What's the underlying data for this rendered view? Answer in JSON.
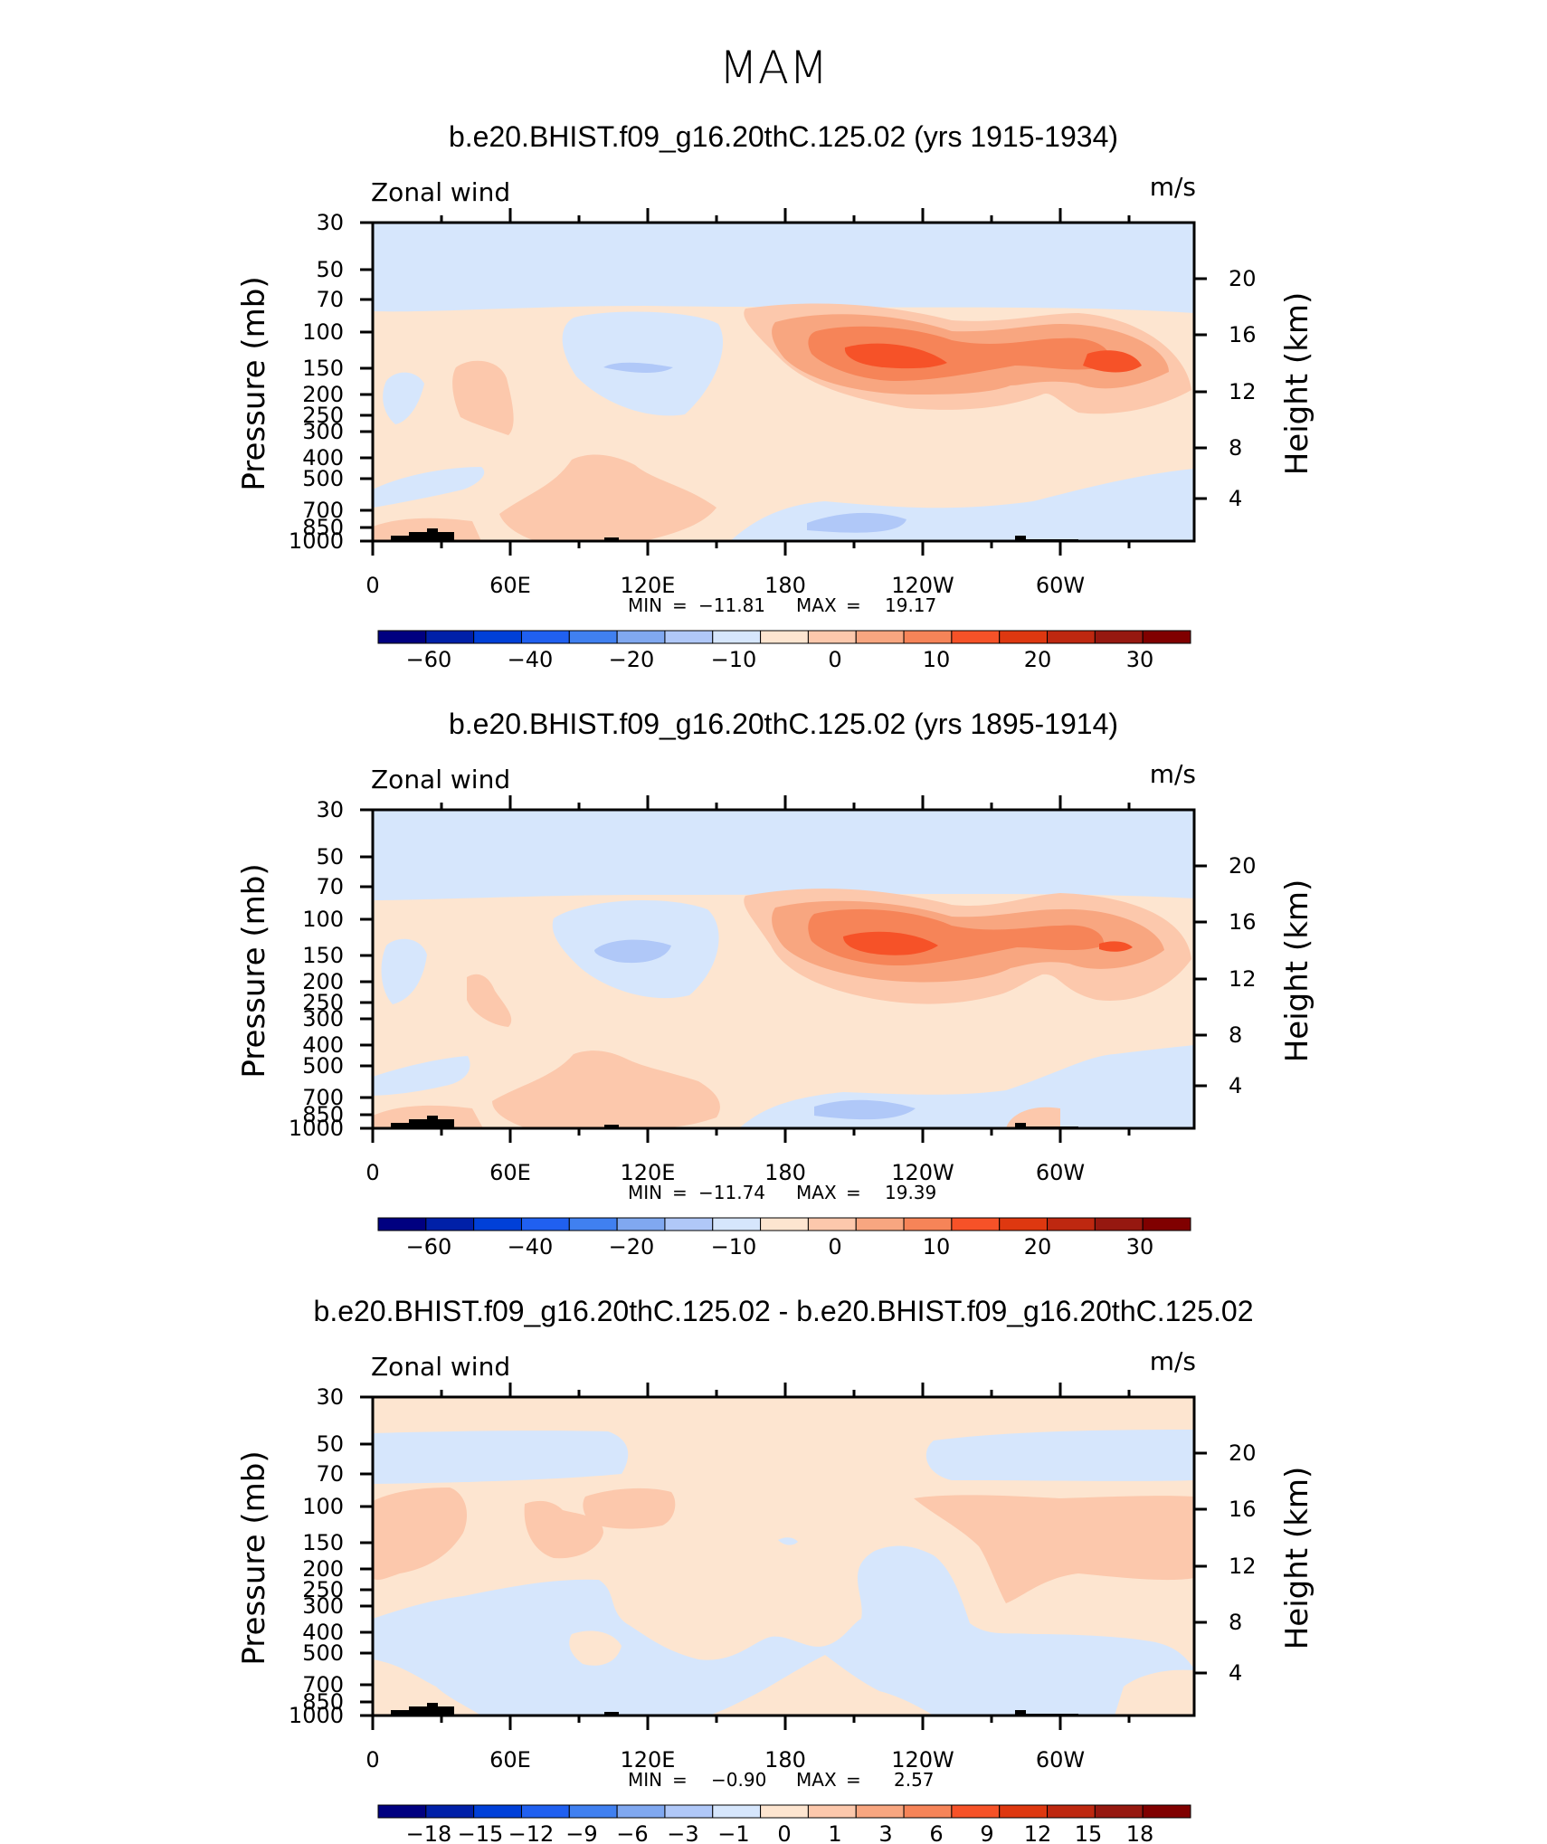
{
  "figure_title": "MAM",
  "colors": {
    "main_scale": [
      "#000080",
      "#0020a8",
      "#0040d8",
      "#2060f0",
      "#4080f0",
      "#80a8f0",
      "#b0c8f8",
      "#d6e6fc",
      "#fde5d0",
      "#fcc8ac",
      "#f8a680",
      "#f68458",
      "#f65228",
      "#de3810",
      "#be2810",
      "#961810",
      "#800000"
    ],
    "diff_scale": [
      "#000080",
      "#0020a8",
      "#0040d8",
      "#2060f0",
      "#4080f0",
      "#80a8f0",
      "#b0c8f8",
      "#d6e6fc",
      "#fde5d0",
      "#fcc8ac",
      "#f8a680",
      "#f68458",
      "#f65228",
      "#de3810",
      "#be2810",
      "#961810",
      "#800000"
    ],
    "topography": "#000000"
  },
  "chart_data": [
    {
      "type": "contour",
      "title": "b.e20.BHIST.f09_g16.20thC.125.02 (yrs 1915-1934)",
      "variable": "Zonal wind",
      "units": "m/s",
      "ylabel": "Pressure (mb)",
      "y2label": "Height (km)",
      "x_ticks": [
        "0",
        "60E",
        "120E",
        "180",
        "120W",
        "60W"
      ],
      "y_ticks": [
        "30",
        "50",
        "70",
        "100",
        "150",
        "200",
        "250",
        "300",
        "400",
        "500",
        "700",
        "850",
        "1000"
      ],
      "y2_ticks": [
        "20",
        "16",
        "12",
        "8",
        "4"
      ],
      "stats": {
        "min_label": "MIN",
        "min": "−11.81",
        "max_label": "MAX",
        "max": "19.17"
      },
      "colorbar_labels": [
        "−60",
        "−40",
        "−20",
        "−10",
        "0",
        "10",
        "20",
        "30"
      ],
      "colorbar_levels": [
        -70,
        -60,
        -50,
        -40,
        -30,
        -20,
        -15,
        -10,
        -5,
        0,
        5,
        10,
        15,
        20,
        25,
        30,
        35
      ],
      "jet_core_max": 19.17
    },
    {
      "type": "contour",
      "title": "b.e20.BHIST.f09_g16.20thC.125.02 (yrs 1895-1914)",
      "variable": "Zonal wind",
      "units": "m/s",
      "ylabel": "Pressure (mb)",
      "y2label": "Height (km)",
      "x_ticks": [
        "0",
        "60E",
        "120E",
        "180",
        "120W",
        "60W"
      ],
      "y_ticks": [
        "30",
        "50",
        "70",
        "100",
        "150",
        "200",
        "250",
        "300",
        "400",
        "500",
        "700",
        "850",
        "1000"
      ],
      "y2_ticks": [
        "20",
        "16",
        "12",
        "8",
        "4"
      ],
      "stats": {
        "min_label": "MIN",
        "min": "−11.74",
        "max_label": "MAX",
        "max": "19.39"
      },
      "colorbar_labels": [
        "−60",
        "−40",
        "−20",
        "−10",
        "0",
        "10",
        "20",
        "30"
      ],
      "colorbar_levels": [
        -70,
        -60,
        -50,
        -40,
        -30,
        -20,
        -15,
        -10,
        -5,
        0,
        5,
        10,
        15,
        20,
        25,
        30,
        35
      ],
      "jet_core_max": 19.39
    },
    {
      "type": "contour",
      "title": "b.e20.BHIST.f09_g16.20thC.125.02 - b.e20.BHIST.f09_g16.20thC.125.02",
      "variable": "Zonal wind",
      "units": "m/s",
      "ylabel": "Pressure (mb)",
      "y2label": "Height (km)",
      "x_ticks": [
        "0",
        "60E",
        "120E",
        "180",
        "120W",
        "60W"
      ],
      "y_ticks": [
        "30",
        "50",
        "70",
        "100",
        "150",
        "200",
        "250",
        "300",
        "400",
        "500",
        "700",
        "850",
        "1000"
      ],
      "y2_ticks": [
        "20",
        "16",
        "12",
        "8",
        "4"
      ],
      "stats": {
        "min_label": "MIN",
        "min": "−0.90",
        "max_label": "MAX",
        "max": "2.57"
      },
      "colorbar_labels": [
        "−18",
        "−15",
        "−12",
        "−9",
        "−6",
        "−3",
        "−1",
        "0",
        "1",
        "3",
        "6",
        "9",
        "12",
        "15",
        "18"
      ],
      "colorbar_levels": [
        -18,
        -15,
        -12,
        -9,
        -6,
        -3,
        -1,
        0,
        1,
        3,
        6,
        9,
        12,
        15,
        18
      ]
    }
  ]
}
